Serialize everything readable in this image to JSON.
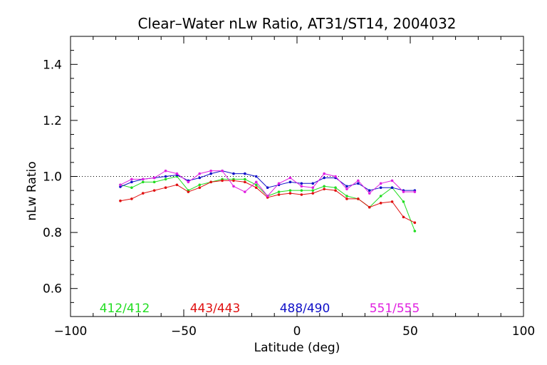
{
  "chart_data": {
    "type": "line",
    "title": "Clear–Water nLw Ratio, AT31/ST14, 2004032",
    "xlabel": "Latitude (deg)",
    "ylabel": "nLw Ratio",
    "xlim": [
      -100,
      100
    ],
    "ylim": [
      0.5,
      1.5
    ],
    "x_ticks": [
      -100,
      -50,
      0,
      50,
      100
    ],
    "x_tick_labels": [
      "−100",
      "−50",
      "0",
      "50",
      "100"
    ],
    "y_ticks": [
      0.6,
      0.8,
      1.0,
      1.2,
      1.4
    ],
    "y_tick_labels": [
      "0.6",
      "0.8",
      "1.0",
      "1.2",
      "1.4"
    ],
    "reference_line": 1.0,
    "grid": false,
    "legend_position": "bottom-inside",
    "x": [
      -78,
      -73,
      -68,
      -63,
      -58,
      -53,
      -48,
      -43,
      -38,
      -33,
      -28,
      -23,
      -18,
      -13,
      -8,
      -3,
      2,
      7,
      12,
      17,
      22,
      27,
      32,
      37,
      42,
      47,
      52
    ],
    "series": [
      {
        "name": "412/412",
        "color": "#22dd22",
        "values": [
          0.97,
          0.96,
          0.98,
          0.98,
          0.99,
          1.0,
          0.95,
          0.97,
          0.98,
          0.99,
          0.99,
          0.99,
          0.97,
          0.93,
          0.945,
          0.95,
          0.95,
          0.95,
          0.965,
          0.96,
          0.93,
          0.92,
          0.89,
          0.93,
          0.96,
          0.91,
          0.805
        ]
      },
      {
        "name": "443/443",
        "color": "#e01010",
        "values": [
          0.913,
          0.92,
          0.94,
          0.95,
          0.96,
          0.97,
          0.945,
          0.96,
          0.98,
          0.985,
          0.985,
          0.98,
          0.96,
          0.925,
          0.935,
          0.94,
          0.935,
          0.94,
          0.955,
          0.95,
          0.92,
          0.92,
          0.89,
          0.905,
          0.91,
          0.855,
          0.835
        ]
      },
      {
        "name": "488/490",
        "color": "#1010c8",
        "values": [
          0.963,
          0.98,
          0.99,
          0.995,
          1.0,
          1.005,
          0.985,
          0.995,
          1.01,
          1.02,
          1.01,
          1.01,
          1.0,
          0.96,
          0.97,
          0.98,
          0.975,
          0.975,
          0.995,
          0.995,
          0.965,
          0.975,
          0.95,
          0.96,
          0.96,
          0.95,
          0.95
        ]
      },
      {
        "name": "551/555",
        "color": "#e020e0",
        "values": [
          0.97,
          0.99,
          0.99,
          0.995,
          1.02,
          1.01,
          0.98,
          1.01,
          1.02,
          1.02,
          0.965,
          0.945,
          0.98,
          0.93,
          0.975,
          0.995,
          0.965,
          0.96,
          1.01,
          1.0,
          0.955,
          0.985,
          0.94,
          0.975,
          0.985,
          0.945,
          0.945
        ]
      }
    ]
  }
}
